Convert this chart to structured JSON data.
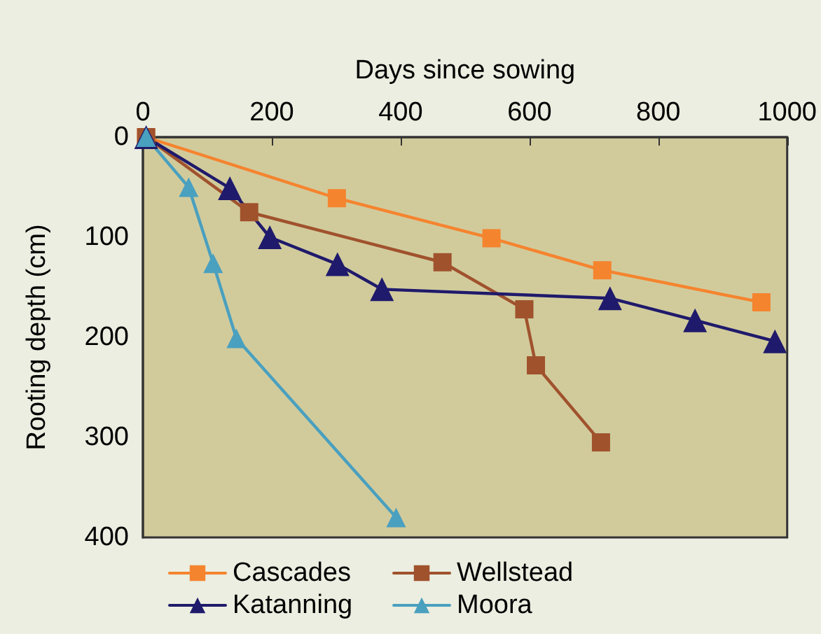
{
  "chart_data": {
    "type": "line",
    "xlabel": "Days since sowing",
    "ylabel": "Rooting depth (cm)",
    "xlim": [
      0,
      1000
    ],
    "xticks": [
      0,
      200,
      400,
      600,
      800,
      1000
    ],
    "ylim": [
      400,
      0
    ],
    "yticks": [
      0,
      100,
      200,
      300,
      400
    ],
    "grid": false,
    "legend": "bottom",
    "line_style": "solid",
    "series": [
      {
        "name": "Cascades",
        "color": "#f5842f",
        "marker": "square",
        "x": [
          5,
          301,
          541,
          713,
          960
        ],
        "values": [
          0,
          61,
          101,
          133,
          165
        ]
      },
      {
        "name": "Wellstead",
        "color": "#a0522d",
        "marker": "square",
        "x": [
          5,
          165,
          465,
          592,
          610,
          711
        ],
        "values": [
          0,
          75,
          125,
          172,
          228,
          305
        ]
      },
      {
        "name": "Katanning",
        "color": "#1f1a6b",
        "marker": "triangle",
        "x": [
          5,
          135,
          197,
          302,
          371,
          725,
          857,
          981
        ],
        "values": [
          0,
          51,
          100,
          127,
          152,
          161,
          183,
          204
        ]
      },
      {
        "name": "Moora",
        "color": "#4aa0bf",
        "marker": "triangle",
        "x": [
          5,
          71,
          109,
          145,
          393
        ],
        "values": [
          0,
          50,
          126,
          201,
          380
        ]
      }
    ]
  }
}
